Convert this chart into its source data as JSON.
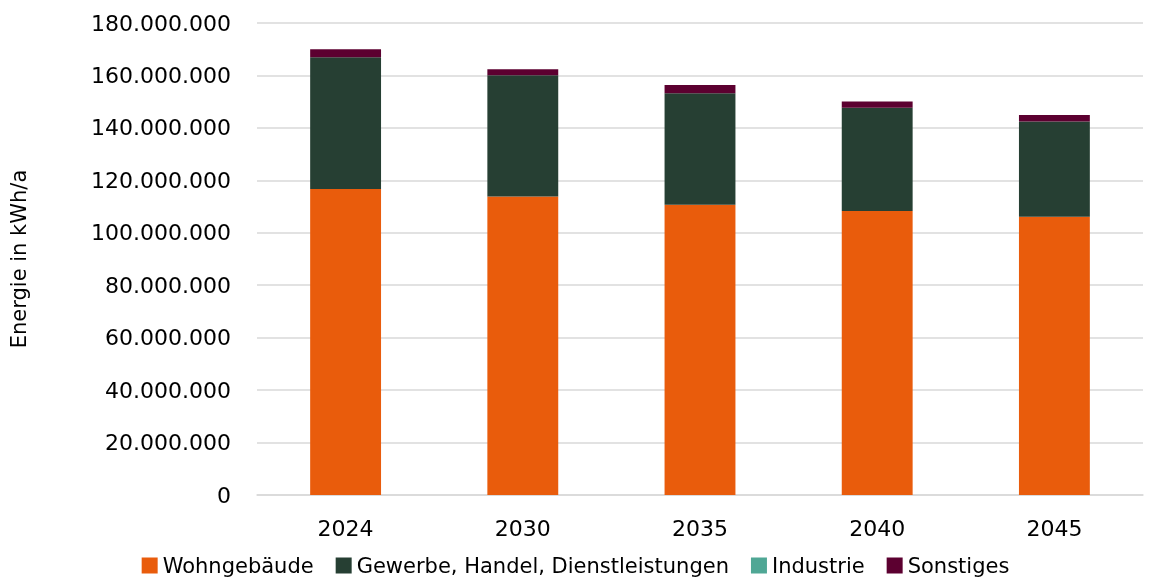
{
  "chart_data": {
    "type": "bar",
    "stacked": true,
    "ylabel": "Energie in kWh/a",
    "categories": [
      "2024",
      "2030",
      "2035",
      "2040",
      "2045"
    ],
    "series": [
      {
        "name": "Wohngebäude",
        "color": "#e95c0c",
        "values": [
          116700000,
          113800000,
          110700000,
          108300000,
          106100000
        ]
      },
      {
        "name": "Gewerbe, Handel, Dienstleistungen",
        "color": "#263f33",
        "values": [
          50200000,
          46300000,
          42500000,
          39400000,
          36300000
        ]
      },
      {
        "name": "Industrie",
        "color": "#4fa795",
        "values": [
          0,
          0,
          0,
          0,
          0
        ]
      },
      {
        "name": "Sonstiges",
        "color": "#5c0030",
        "values": [
          3100000,
          2300000,
          3200000,
          2400000,
          2500000
        ]
      }
    ],
    "ylim": [
      0,
      180000000
    ],
    "yticks": [
      0,
      {
        "value": 20000000,
        "label": "20.000.000"
      },
      {
        "value": 40000000,
        "label": "40.000.000"
      },
      {
        "value": 60000000,
        "label": "60.000.000"
      },
      {
        "value": 80000000,
        "label": "80.000.000"
      },
      {
        "value": 100000000,
        "label": "100.000.000"
      },
      {
        "value": 120000000,
        "label": "120.000.000"
      },
      {
        "value": 140000000,
        "label": "140.000.000"
      },
      {
        "value": 160000000,
        "label": "160.000.000"
      },
      {
        "value": 180000000,
        "label": "180.000.000"
      }
    ],
    "grid": "y",
    "legend": "bottom"
  }
}
